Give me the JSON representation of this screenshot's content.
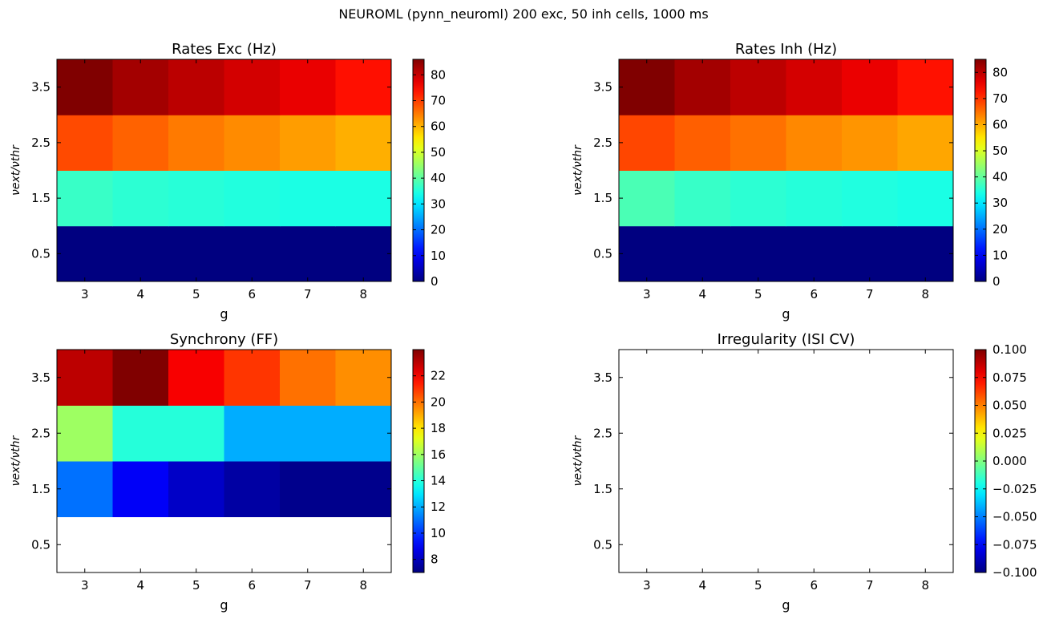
{
  "figure": {
    "title": "NEUROML (pynn_neuroml) 200 exc, 50 inh cells, 1000 ms"
  },
  "chart_data": [
    {
      "type": "heatmap",
      "title": "Rates Exc (Hz)",
      "xlabel": "g",
      "ylabel": "νext/νthr",
      "x_ticks": [
        "3",
        "4",
        "5",
        "6",
        "7",
        "8"
      ],
      "y_ticks": [
        "0.5",
        "1.5",
        "2.5",
        "3.5"
      ],
      "xlim": [
        2.5,
        8.5
      ],
      "ylim": [
        0,
        4
      ],
      "rows": [
        {
          "y": 0.5,
          "values": [
            0,
            0,
            0,
            0,
            0,
            0
          ]
        },
        {
          "y": 1.5,
          "values": [
            37,
            36,
            35.5,
            35,
            34.5,
            34.5
          ]
        },
        {
          "y": 2.5,
          "values": [
            69,
            67,
            65,
            63.5,
            62,
            60.5
          ]
        },
        {
          "y": 3.5,
          "values": [
            86,
            83,
            81,
            79,
            77,
            74
          ]
        }
      ],
      "colorbar": {
        "min": 0,
        "max": 86,
        "ticks": [
          "0",
          "10",
          "20",
          "30",
          "40",
          "50",
          "60",
          "70",
          "80"
        ],
        "tick_values": [
          0,
          10,
          20,
          30,
          40,
          50,
          60,
          70,
          80
        ]
      }
    },
    {
      "type": "heatmap",
      "title": "Rates Inh (Hz)",
      "xlabel": "g",
      "ylabel": "νext/νthr",
      "x_ticks": [
        "3",
        "4",
        "5",
        "6",
        "7",
        "8"
      ],
      "y_ticks": [
        "0.5",
        "1.5",
        "2.5",
        "3.5"
      ],
      "xlim": [
        2.5,
        8.5
      ],
      "ylim": [
        0,
        4
      ],
      "rows": [
        {
          "y": 0.5,
          "values": [
            0,
            0,
            0,
            0,
            0,
            0
          ]
        },
        {
          "y": 1.5,
          "values": [
            38,
            36.5,
            35.5,
            35,
            34.5,
            34
          ]
        },
        {
          "y": 2.5,
          "values": [
            68.5,
            66.5,
            65,
            63,
            62,
            60.5
          ]
        },
        {
          "y": 3.5,
          "values": [
            85,
            82,
            80,
            78,
            76,
            73
          ]
        }
      ],
      "colorbar": {
        "min": 0,
        "max": 85,
        "ticks": [
          "0",
          "10",
          "20",
          "30",
          "40",
          "50",
          "60",
          "70",
          "80"
        ],
        "tick_values": [
          0,
          10,
          20,
          30,
          40,
          50,
          60,
          70,
          80
        ]
      }
    },
    {
      "type": "heatmap",
      "title": "Synchrony (FF)",
      "xlabel": "g",
      "ylabel": "νext/νthr",
      "x_ticks": [
        "3",
        "4",
        "5",
        "6",
        "7",
        "8"
      ],
      "y_ticks": [
        "0.5",
        "1.5",
        "2.5",
        "3.5"
      ],
      "xlim": [
        2.5,
        8.5
      ],
      "ylim": [
        0,
        4
      ],
      "rows": [
        {
          "y": 0.5,
          "values": [
            null,
            null,
            null,
            null,
            null,
            null
          ]
        },
        {
          "y": 1.5,
          "values": [
            11,
            9,
            8.2,
            7.6,
            7.2,
            7.2
          ]
        },
        {
          "y": 2.5,
          "values": [
            16,
            14,
            14,
            12,
            12,
            12
          ]
        },
        {
          "y": 3.5,
          "values": [
            23,
            24,
            22,
            21,
            20,
            19.5
          ]
        }
      ],
      "colorbar": {
        "min": 7,
        "max": 24,
        "ticks": [
          "8",
          "10",
          "12",
          "14",
          "16",
          "18",
          "20",
          "22"
        ],
        "tick_values": [
          8,
          10,
          12,
          14,
          16,
          18,
          20,
          22
        ]
      }
    },
    {
      "type": "heatmap",
      "title": "Irregularity (ISI CV)",
      "xlabel": "g",
      "ylabel": "νext/νthr",
      "x_ticks": [
        "3",
        "4",
        "5",
        "6",
        "7",
        "8"
      ],
      "y_ticks": [
        "0.5",
        "1.5",
        "2.5",
        "3.5"
      ],
      "xlim": [
        2.5,
        8.5
      ],
      "ylim": [
        0,
        4
      ],
      "rows": [
        {
          "y": 0.5,
          "values": [
            null,
            null,
            null,
            null,
            null,
            null
          ]
        },
        {
          "y": 1.5,
          "values": [
            null,
            null,
            null,
            null,
            null,
            null
          ]
        },
        {
          "y": 2.5,
          "values": [
            null,
            null,
            null,
            null,
            null,
            null
          ]
        },
        {
          "y": 3.5,
          "values": [
            null,
            null,
            null,
            null,
            null,
            null
          ]
        }
      ],
      "colorbar": {
        "min": -0.1,
        "max": 0.1,
        "ticks": [
          "−0.100",
          "−0.075",
          "−0.050",
          "−0.025",
          "0.000",
          "0.025",
          "0.050",
          "0.075",
          "0.100"
        ],
        "tick_values": [
          -0.1,
          -0.075,
          -0.05,
          -0.025,
          0,
          0.025,
          0.05,
          0.075,
          0.1
        ]
      }
    }
  ]
}
